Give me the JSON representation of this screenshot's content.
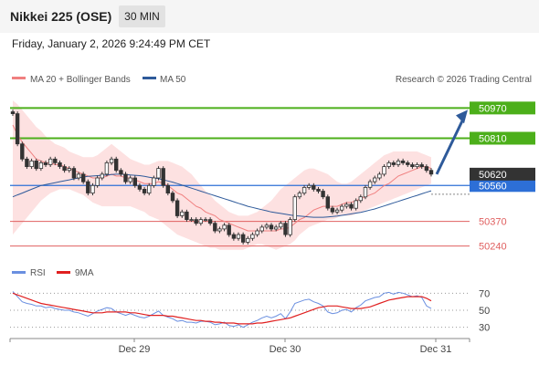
{
  "header": {
    "title": "Nikkei 225 (OSE)",
    "timeframe": "30 MIN",
    "datetime": "Friday, January 2, 2026 9:24:49 PM CET"
  },
  "legend": {
    "ma20_label": "MA 20 + Bollinger Bands",
    "ma50_label": "MA 50",
    "watermark": "Research © 2026 Trading Central",
    "rsi_label": "RSI",
    "rsi_ma_label": "9MA"
  },
  "colors": {
    "ma20": "#f08080",
    "ma50": "#2e5a9a",
    "band_fill": "#fde1e1",
    "resistance": "#4caf1a",
    "support": "#e06060",
    "pivot": "#2d6fd6",
    "candle": "#333333",
    "arrow": "#2e5a9a",
    "rsi": "#6a8fe0",
    "rsi_ma": "#e02020"
  },
  "chart_data": [
    {
      "type": "candlestick",
      "x_labels": [
        "Dec 29",
        "Dec 30",
        "Dec 31"
      ],
      "ylim": [
        50180,
        51020
      ],
      "levels": {
        "resistance": [
          {
            "value": 50970,
            "label": "50970"
          },
          {
            "value": 50810,
            "label": "50810"
          }
        ],
        "pivot": {
          "value": 50560,
          "label": "50560"
        },
        "support": [
          {
            "value": 50370,
            "label": "50370"
          },
          {
            "value": 50240,
            "label": "50240"
          }
        ],
        "last_price": {
          "value": 50620,
          "label": "50620"
        }
      },
      "series_close": [
        50940,
        50780,
        50700,
        50660,
        50690,
        50650,
        50680,
        50670,
        50700,
        50680,
        50660,
        50640,
        50650,
        50600,
        50620,
        50580,
        50520,
        50560,
        50600,
        50620,
        50680,
        50700,
        50640,
        50620,
        50580,
        50600,
        50560,
        50540,
        50520,
        50560,
        50600,
        50650,
        50560,
        50520,
        50480,
        50400,
        50420,
        50380,
        50380,
        50360,
        50380,
        50380,
        50360,
        50320,
        50330,
        50350,
        50300,
        50280,
        50300,
        50260,
        50280,
        50300,
        50320,
        50340,
        50350,
        50330,
        50340,
        50360,
        50300,
        50380,
        50500,
        50520,
        50550,
        50560,
        50540,
        50530,
        50500,
        50440,
        50420,
        50430,
        50450,
        50460,
        50440,
        50480,
        50500,
        50550,
        50580,
        50600,
        50620,
        50660,
        50680,
        50670,
        50690,
        50680,
        50670,
        50660,
        50670,
        50660,
        50640,
        50620
      ],
      "ma20": [
        50880,
        50830,
        50790,
        50760,
        50730,
        50700,
        50690,
        50680,
        50680,
        50670,
        50670,
        50660,
        50650,
        50640,
        50630,
        50620,
        50610,
        50600,
        50600,
        50600,
        50610,
        50620,
        50610,
        50610,
        50600,
        50600,
        50590,
        50580,
        50570,
        50570,
        50570,
        50580,
        50570,
        50560,
        50540,
        50520,
        50510,
        50490,
        50470,
        50450,
        50440,
        50420,
        50410,
        50400,
        50380,
        50370,
        50360,
        50350,
        50340,
        50330,
        50320,
        50320,
        50320,
        50320,
        50320,
        50320,
        50320,
        50330,
        50330,
        50340,
        50360,
        50380,
        50390,
        50410,
        50430,
        50440,
        50450,
        50450,
        50450,
        50450,
        50460,
        50470,
        50470,
        50480,
        50490,
        50500,
        50510,
        50520,
        50540,
        50560,
        50570,
        50590,
        50610,
        50620,
        50630,
        50640,
        50650,
        50660,
        50660,
        50650
      ],
      "bollinger_upper": [
        51010,
        50990,
        50960,
        50930,
        50900,
        50870,
        50850,
        50820,
        50800,
        50780,
        50770,
        50760,
        50740,
        50730,
        50720,
        50710,
        50710,
        50710,
        50720,
        50740,
        50760,
        50780,
        50760,
        50740,
        50720,
        50700,
        50690,
        50680,
        50670,
        50670,
        50680,
        50690,
        50690,
        50690,
        50680,
        50670,
        50660,
        50640,
        50620,
        50590,
        50560,
        50530,
        50510,
        50480,
        50460,
        50440,
        50420,
        50410,
        50400,
        50400,
        50400,
        50410,
        50420,
        50440,
        50460,
        50480,
        50510,
        50540,
        50560,
        50580,
        50600,
        50620,
        50640,
        50650,
        50650,
        50640,
        50630,
        50620,
        50600,
        50580,
        50570,
        50570,
        50580,
        50600,
        50620,
        50640,
        50660,
        50680,
        50700,
        50720,
        50730,
        50740,
        50740,
        50740,
        50740,
        50740,
        50740,
        50730,
        50720,
        50710
      ],
      "bollinger_lower": [
        50300,
        50330,
        50360,
        50390,
        50420,
        50450,
        50480,
        50500,
        50520,
        50530,
        50540,
        50540,
        50540,
        50530,
        50520,
        50510,
        50490,
        50470,
        50460,
        50450,
        50450,
        50450,
        50450,
        50450,
        50450,
        50450,
        50440,
        50430,
        50420,
        50400,
        50390,
        50380,
        50360,
        50340,
        50320,
        50300,
        50290,
        50280,
        50270,
        50260,
        50250,
        50240,
        50230,
        50230,
        50220,
        50220,
        50220,
        50220,
        50220,
        50220,
        50230,
        50240,
        50250,
        50250,
        50240,
        50230,
        50220,
        50230,
        50240,
        50250,
        50270,
        50300,
        50320,
        50340,
        50350,
        50360,
        50370,
        50380,
        50380,
        50390,
        50400,
        50400,
        50400,
        50410,
        50420,
        50430,
        50440,
        50450,
        50460,
        50470,
        50480,
        50490,
        50500,
        50510,
        50520,
        50530,
        50540,
        50550,
        50560,
        50570
      ],
      "ma50": [
        50500,
        50510,
        50520,
        50530,
        50540,
        50550,
        50560,
        50565,
        50570,
        50575,
        50580,
        50585,
        50590,
        50595,
        50600,
        50605,
        50608,
        50610,
        50612,
        50614,
        50616,
        50618,
        50620,
        50620,
        50618,
        50616,
        50614,
        50612,
        50608,
        50604,
        50600,
        50596,
        50590,
        50584,
        50578,
        50570,
        50562,
        50554,
        50546,
        50538,
        50530,
        50522,
        50514,
        50506,
        50498,
        50490,
        50482,
        50474,
        50466,
        50458,
        50450,
        50444,
        50438,
        50432,
        50426,
        50420,
        50416,
        50412,
        50408,
        50404,
        50400,
        50398,
        50396,
        50394,
        50392,
        50392,
        50392,
        50394,
        50396,
        50398,
        50402,
        50406,
        50410,
        50414,
        50418,
        50424,
        50430,
        50436,
        50444,
        50452,
        50460,
        50468,
        50476,
        50484,
        50492,
        50500,
        50508,
        50516,
        50524,
        50532
      ]
    },
    {
      "type": "line",
      "title": "RSI",
      "y_ticks": [
        70,
        50,
        30
      ],
      "ylim": [
        20,
        80
      ],
      "series": [
        {
          "name": "RSI",
          "values": [
            72,
            66,
            60,
            58,
            57,
            55,
            55,
            53,
            54,
            52,
            51,
            50,
            50,
            48,
            47,
            45,
            43,
            46,
            49,
            51,
            53,
            52,
            48,
            46,
            44,
            46,
            44,
            42,
            41,
            43,
            46,
            49,
            44,
            42,
            40,
            37,
            38,
            36,
            36,
            35,
            37,
            37,
            36,
            33,
            34,
            36,
            32,
            31,
            33,
            30,
            33,
            36,
            38,
            41,
            43,
            41,
            43,
            46,
            40,
            48,
            58,
            60,
            62,
            63,
            60,
            58,
            55,
            48,
            46,
            47,
            50,
            51,
            48,
            53,
            56,
            61,
            63,
            65,
            66,
            70,
            71,
            69,
            71,
            70,
            68,
            66,
            67,
            65,
            55,
            52
          ]
        },
        {
          "name": "9MA",
          "values": [
            70,
            68,
            66,
            64,
            62,
            60,
            58,
            57,
            56,
            55,
            54,
            53,
            52,
            51,
            50,
            49,
            48,
            47,
            47,
            47,
            48,
            48,
            48,
            48,
            48,
            47,
            47,
            46,
            45,
            44,
            44,
            44,
            44,
            43,
            43,
            42,
            41,
            40,
            39,
            38,
            38,
            37,
            37,
            36,
            36,
            35,
            35,
            35,
            34,
            34,
            34,
            34,
            35,
            35,
            36,
            37,
            38,
            39,
            40,
            41,
            43,
            45,
            47,
            49,
            51,
            53,
            54,
            55,
            55,
            55,
            54,
            53,
            52,
            52,
            52,
            53,
            54,
            56,
            58,
            60,
            62,
            63,
            64,
            65,
            66,
            66,
            66,
            66,
            64,
            61
          ]
        }
      ]
    }
  ]
}
